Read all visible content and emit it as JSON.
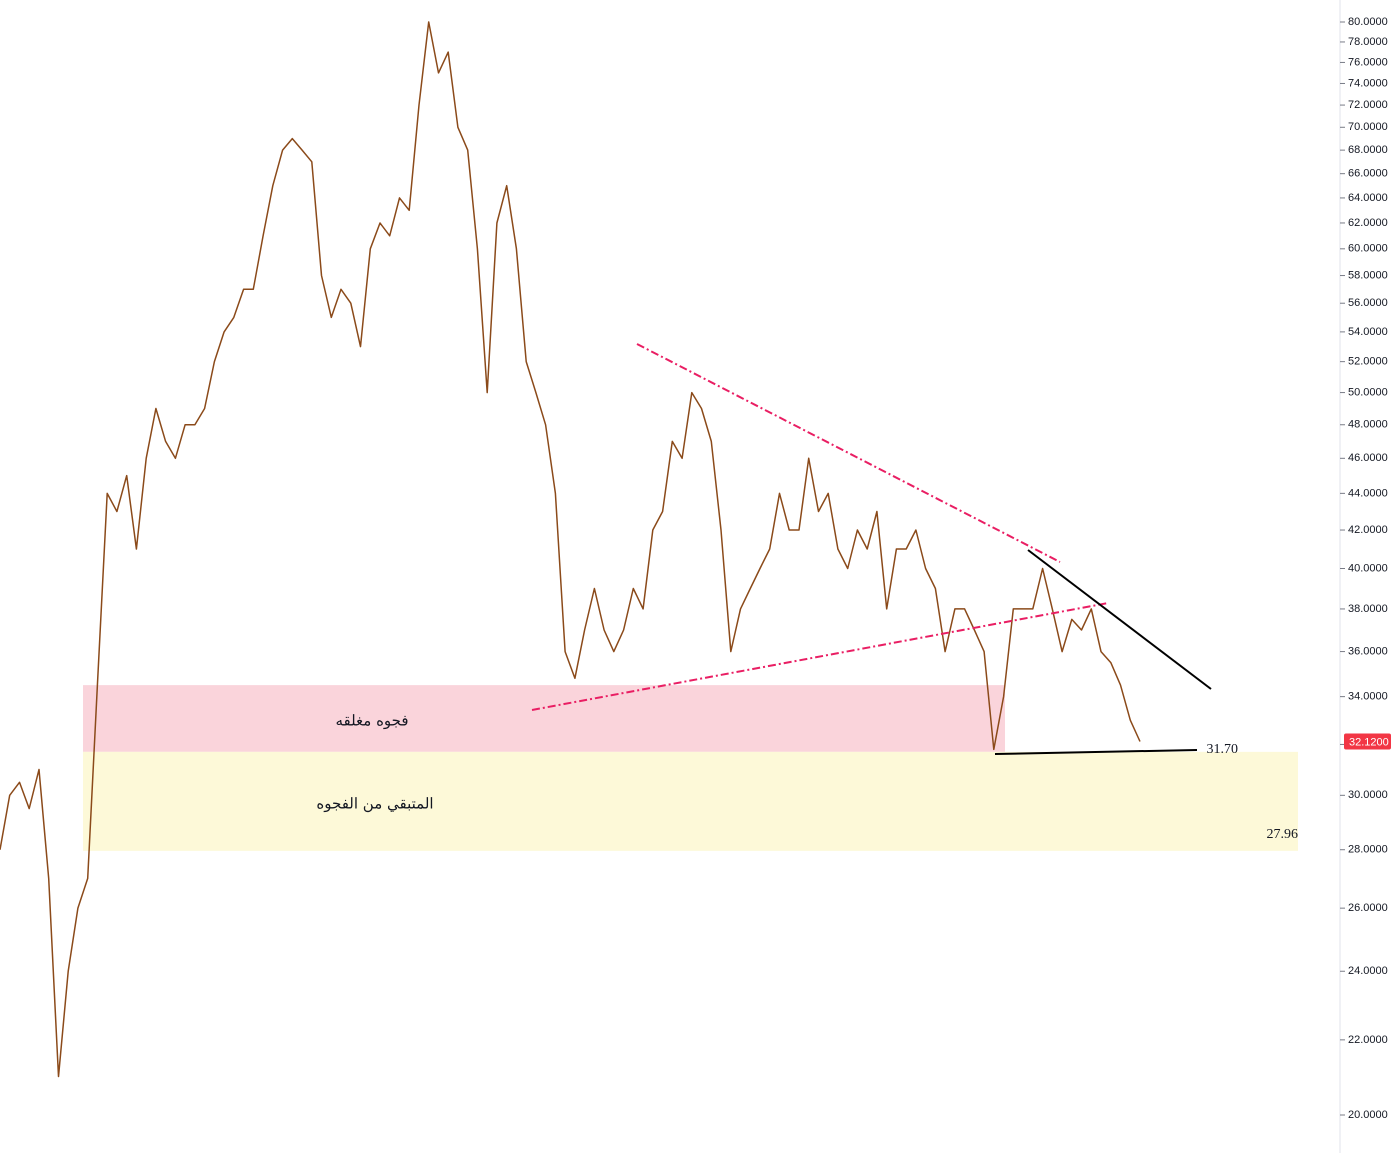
{
  "chart_data": {
    "type": "line",
    "values": [
      28,
      30,
      30.5,
      29.5,
      31,
      27,
      21,
      24,
      26,
      27,
      34.5,
      44,
      43,
      45,
      41,
      46,
      49,
      47,
      46,
      48,
      48,
      49,
      52,
      54,
      55,
      57,
      57,
      61,
      65,
      68,
      69,
      68,
      67,
      58,
      55,
      57,
      56,
      53,
      60,
      62,
      61,
      64,
      63,
      72,
      80,
      75,
      77,
      70,
      68,
      60,
      50,
      62,
      65,
      60,
      52,
      50,
      48,
      44,
      36,
      34.8,
      37,
      39,
      37,
      36,
      37,
      39,
      38,
      42,
      43,
      47,
      46,
      50,
      49,
      47,
      42,
      36,
      38,
      39,
      40,
      41,
      44,
      42,
      42,
      46,
      43,
      44,
      41,
      40,
      42,
      41,
      43,
      38,
      41,
      41,
      42,
      40,
      39,
      36,
      38,
      38,
      37,
      36,
      31.8,
      34,
      38,
      38,
      38,
      40,
      38,
      36,
      37.5,
      37,
      38,
      36,
      35.5,
      34.5,
      33,
      32.12
    ],
    "color": "#8b4a1a",
    "log_scale": true,
    "ylim": [
      19.6,
      81
    ],
    "yticks": [
      {
        "value": 80,
        "label": "80.0000"
      },
      {
        "value": 78,
        "label": "78.0000"
      },
      {
        "value": 76,
        "label": "76.0000"
      },
      {
        "value": 74,
        "label": "74.0000"
      },
      {
        "value": 72,
        "label": "72.0000"
      },
      {
        "value": 70,
        "label": "70.0000"
      },
      {
        "value": 68,
        "label": "68.0000"
      },
      {
        "value": 66,
        "label": "66.0000"
      },
      {
        "value": 64,
        "label": "64.0000"
      },
      {
        "value": 62,
        "label": "62.0000"
      },
      {
        "value": 60,
        "label": "60.0000"
      },
      {
        "value": 58,
        "label": "58.0000"
      },
      {
        "value": 56,
        "label": "56.0000"
      },
      {
        "value": 54,
        "label": "54.0000"
      },
      {
        "value": 52,
        "label": "52.0000"
      },
      {
        "value": 50,
        "label": "50.0000"
      },
      {
        "value": 48,
        "label": "48.0000"
      },
      {
        "value": 46,
        "label": "46.0000"
      },
      {
        "value": 44,
        "label": "44.0000"
      },
      {
        "value": 42,
        "label": "42.0000"
      },
      {
        "value": 40,
        "label": "40.0000"
      },
      {
        "value": 38,
        "label": "38.0000"
      },
      {
        "value": 36,
        "label": "36.0000"
      },
      {
        "value": 34,
        "label": "34.0000"
      },
      {
        "value": 32,
        "label": "32.0000"
      },
      {
        "value": 30,
        "label": "30.0000"
      },
      {
        "value": 28,
        "label": "28.0000"
      },
      {
        "value": 26,
        "label": "26.0000"
      },
      {
        "value": 24,
        "label": "24.0000"
      },
      {
        "value": 22,
        "label": "22.0000"
      },
      {
        "value": 20,
        "label": "20.0000"
      }
    ],
    "zones": [
      {
        "label": "فجوه مغلقه",
        "from": 31.7,
        "to": 34.5,
        "color": "#fad4db"
      },
      {
        "label": "المتبقي من الفجوه",
        "from": 27.96,
        "to": 31.7,
        "color": "#fdf9d8"
      }
    ],
    "levels": [
      {
        "value": 31.7,
        "label": "31.70"
      },
      {
        "value": 27.96,
        "label": "27.96"
      }
    ],
    "last_price": {
      "value": 32.12,
      "label": "32.1200",
      "color": "#f23645"
    }
  }
}
